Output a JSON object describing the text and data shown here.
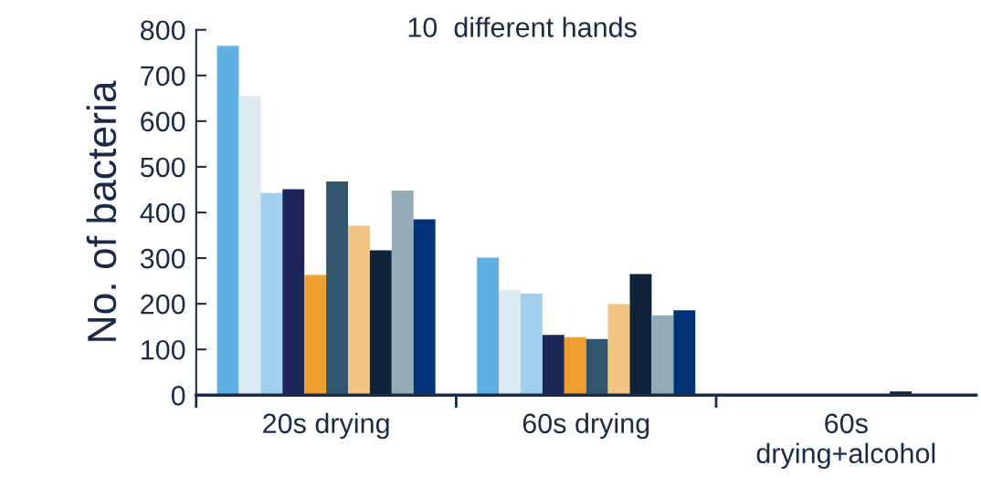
{
  "chart_data": {
    "type": "bar",
    "title": "10  different hands",
    "ylabel": "No. of bacteria",
    "categories": [
      "20s drying",
      "60s drying",
      "60s\ndrying+alcohol"
    ],
    "series": [
      {
        "color": "#60b0e6",
        "values": [
          765,
          301,
          0
        ]
      },
      {
        "color": "#dceaf3",
        "values": [
          655,
          230,
          0
        ]
      },
      {
        "color": "#a3cfee",
        "values": [
          443,
          222,
          null
        ]
      },
      {
        "color": "#1c2557",
        "values": [
          451,
          132,
          0
        ]
      },
      {
        "color": "#ef9e30",
        "values": [
          263,
          127,
          0
        ]
      },
      {
        "color": "#33566f",
        "values": [
          468,
          123,
          0
        ]
      },
      {
        "color": "#f3c584",
        "values": [
          371,
          200,
          0
        ]
      },
      {
        "color": "#0f233a",
        "values": [
          317,
          265,
          8
        ]
      },
      {
        "color": "#96abb8",
        "values": [
          448,
          175,
          2
        ]
      },
      {
        "color": "#003277",
        "values": [
          385,
          186,
          0
        ]
      }
    ],
    "ylim": [
      0,
      800
    ],
    "yticks": [
      0,
      100,
      200,
      300,
      400,
      500,
      600,
      700,
      800
    ],
    "grid": false,
    "legend": false
  }
}
